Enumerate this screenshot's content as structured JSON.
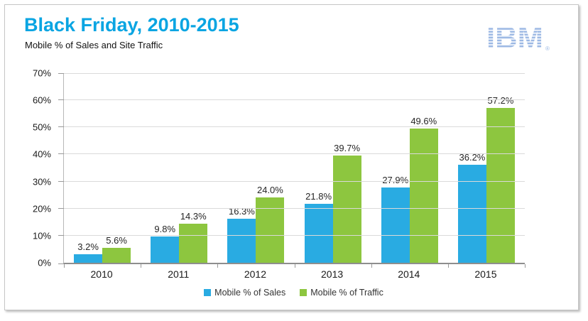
{
  "window": {
    "background": "#ffffff",
    "frame_border_color": "#c6c6c6"
  },
  "header": {
    "title": "Black Friday, 2010-2015",
    "subtitle": "Mobile % of Sales and Site Traffic",
    "title_color": "#0aa5e2",
    "logo": {
      "text": "IBM",
      "registered_mark": "®",
      "color": "#9db9e4"
    }
  },
  "chart_data": {
    "type": "bar",
    "title": "Black Friday, 2010-2015",
    "subtitle": "Mobile % of Sales and Site Traffic",
    "categories": [
      "2010",
      "2011",
      "2012",
      "2013",
      "2014",
      "2015"
    ],
    "series": [
      {
        "name": "Mobile % of Sales",
        "key": "sales",
        "color": "#29ABE2",
        "values": [
          3.2,
          9.8,
          16.3,
          21.8,
          27.9,
          36.2
        ]
      },
      {
        "name": "Mobile % of Traffic",
        "key": "traffic",
        "color": "#8DC63F",
        "values": [
          5.6,
          14.3,
          24.0,
          39.7,
          49.6,
          57.2
        ]
      }
    ],
    "data_labels": {
      "sales": [
        "3.2%",
        "9.8%",
        "16.3%",
        "21.8%",
        "27.9%",
        "36.2%"
      ],
      "traffic": [
        "5.6%",
        "14.3%",
        "24.0%",
        "39.7%",
        "49.6%",
        "57.2%"
      ]
    },
    "ylim": [
      0,
      70
    ],
    "ytick_step": 10,
    "ytick_labels": [
      "0%",
      "10%",
      "20%",
      "30%",
      "40%",
      "50%",
      "60%",
      "70%"
    ],
    "grid": true,
    "legend_position": "bottom"
  },
  "legend": {
    "items": [
      {
        "label": "Mobile % of Sales",
        "color": "#29ABE2"
      },
      {
        "label": "Mobile % of Traffic",
        "color": "#8DC63F"
      }
    ]
  }
}
